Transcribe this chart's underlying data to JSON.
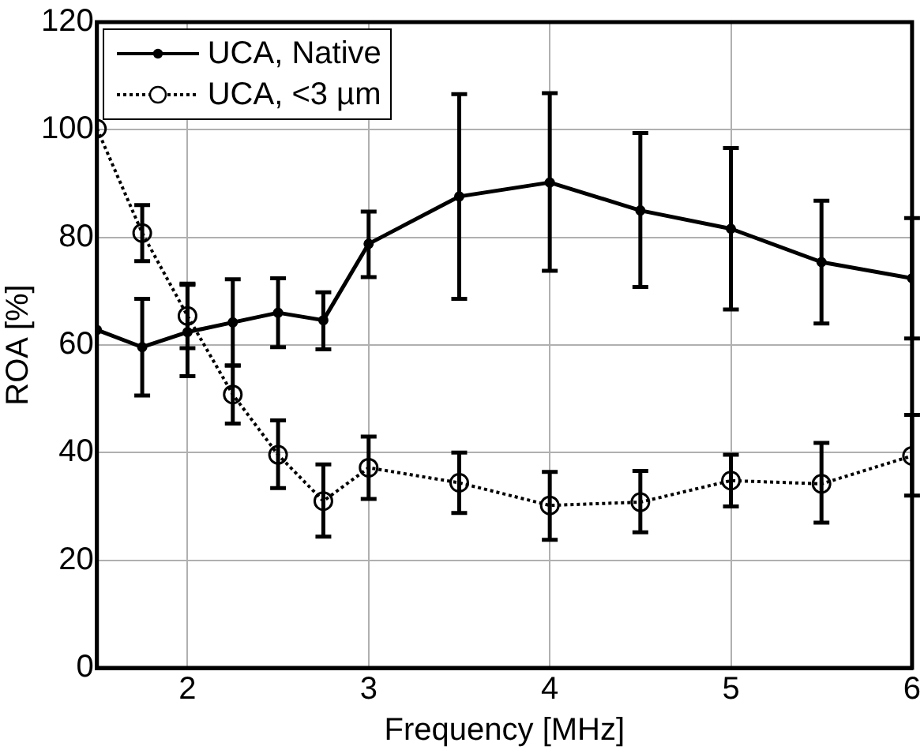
{
  "chart_data": {
    "type": "line",
    "xlabel": "Frequency [MHz]",
    "ylabel": "ROA [%]",
    "xlim": [
      1.5,
      6
    ],
    "xticks": [
      2,
      3,
      4,
      5,
      6
    ],
    "ylim": [
      0,
      120
    ],
    "yticks": [
      0,
      20,
      40,
      60,
      80,
      100,
      120
    ],
    "grid": true,
    "legend": "top left",
    "x": [
      1.5,
      1.75,
      2,
      2.25,
      2.5,
      2.75,
      3,
      3.5,
      4,
      4.5,
      5,
      5.5,
      6
    ],
    "series": [
      {
        "name": "UCA, Native",
        "color": "#000000",
        "marker": "circle",
        "line_style": "solid",
        "values": [
          62.8,
          59.6,
          62.4,
          64.2,
          66,
          64.6,
          78.8,
          87.6,
          90.2,
          85,
          81.6,
          75.4,
          72.4
        ],
        "errors": [
          null,
          [
            50.6,
            68.6
          ],
          [
            54.2,
            71.2
          ],
          [
            56.2,
            72.2
          ],
          [
            59.6,
            72.4
          ],
          [
            59.2,
            69.8
          ],
          [
            72.6,
            84.8
          ],
          [
            68.6,
            106.6
          ],
          [
            73.8,
            106.8
          ],
          [
            70.8,
            99.4
          ],
          [
            66.6,
            96.6
          ],
          [
            64,
            86.8
          ],
          [
            61.2,
            83.6
          ]
        ]
      },
      {
        "name": "UCA, <3 µm",
        "color": "#000000",
        "marker": "circle",
        "line_style": "dotted",
        "values": [
          100.2,
          80.8,
          65.4,
          50.8,
          39.6,
          31,
          37.2,
          34.4,
          30.2,
          30.8,
          34.8,
          34.2,
          39.4
        ],
        "errors": [
          null,
          [
            75.6,
            86
          ],
          [
            59.4,
            71.4
          ],
          [
            45.4,
            56.2
          ],
          [
            33.4,
            46
          ],
          [
            24.4,
            37.8
          ],
          [
            31.4,
            43
          ],
          [
            28.8,
            40
          ],
          [
            23.8,
            36.4
          ],
          [
            25.2,
            36.6
          ],
          [
            30,
            39.6
          ],
          [
            27,
            41.8
          ],
          [
            32,
            47
          ]
        ]
      }
    ]
  }
}
